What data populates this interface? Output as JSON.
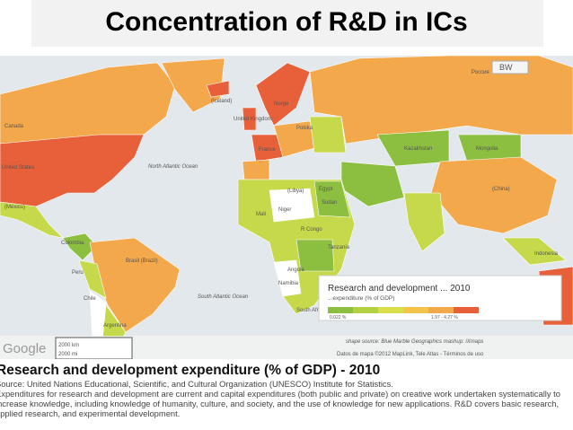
{
  "title": "Concentration of R&D in ICs",
  "map": {
    "labels": {
      "iceland": "(Iceland)",
      "uk": "United Kingdom",
      "norge": "Norge",
      "polska": "Polska",
      "france": "France",
      "russia": "Россия",
      "kazakhstan": "Kazakhstan",
      "mongolia": "Mongolia",
      "china": "(China)",
      "indonesia": "Indonesia",
      "canada": "Canada",
      "us": "United States",
      "mexico": "(Mexico)",
      "colombia": "Colombia",
      "brazil": "Brasil (Brazil)",
      "peru": "Peru",
      "chile": "Chile",
      "argentina": "Argentina",
      "congo": "R Congo",
      "tanzania": "Tanzania",
      "angola": "Angola",
      "namibia": "Namibia",
      "south_africa": "South Africa",
      "mali": "Mali",
      "niger": "Niger",
      "sudan": "Sudan",
      "egypt": "Egypt",
      "libya": "(Libya)",
      "north_atlantic": "North Atlantic Ocean",
      "south_atlantic": "South Atlantic Ocean"
    },
    "style_button": "BW",
    "legend": {
      "title": "Research and development ... 2010",
      "subtitle": "...expenditure (% of GDP)",
      "min": "0.022 %",
      "max": "1.97 - 4.27 %"
    },
    "shape_source": "shape source: Blue Marble Geographics   mashup: iXmaps",
    "attribution": "Datos de mapa ©2012 MapLink, Tele Atlas - Términos de uso",
    "logo": "Google",
    "scale_km": "2000 km",
    "scale_mi": "2000 mi"
  },
  "caption": {
    "heading": "Research and development expenditure (% of GDP) - 2010",
    "source": "Source: United Nations Educational, Scientific, and Cultural Organization (UNESCO) Institute for Statistics.",
    "description": "Expenditures for research and development are current and capital expenditures (both public and private) on creative work undertaken systematically to increase knowledge, including knowledge of humanity, culture, and society, and the use of knowledge for new applications. R&D covers basic research, applied research, and experimental development."
  }
}
